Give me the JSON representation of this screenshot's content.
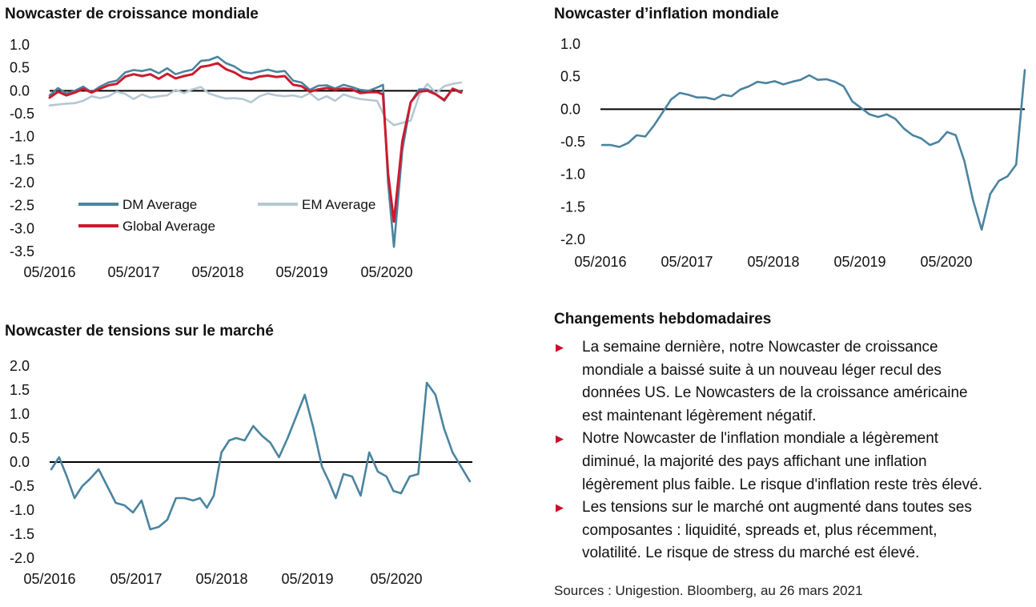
{
  "colors": {
    "dm": "#4a84a0",
    "em": "#b5c8d3",
    "global": "#cc1a2e",
    "axis": "#000000",
    "bullet": "#c8102e"
  },
  "changes": {
    "title": "Changements hebdomadaires",
    "bullet_icon": "triangle-right-icon",
    "bullets": [
      [
        "La semaine dernière, notre Nowcaster de croissance",
        "mondiale a baissé suite à un nouveau léger recul des",
        "données US. Le Nowcasters de la croissance américaine",
        "est maintenant légèrement négatif."
      ],
      [
        "Notre Nowcaster de l'inflation mondiale a légèrement",
        "diminué, la majorité des pays affichant une inflation",
        "légèrement plus faible. Le risque d'inflation reste très élevé."
      ],
      [
        "Les tensions sur le marché ont augmenté dans toutes ses",
        "composantes : liquidité, spreads et, plus récemment,",
        "volatilité. Le risque de stress du marché est élevé."
      ]
    ]
  },
  "sources": "Sources : Unigestion. Bloomberg, au 26 mars 2021",
  "chart_data": [
    {
      "type": "line",
      "title": "Nowcaster de croissance mondiale",
      "x_ticks": [
        "05/2016",
        "05/2017",
        "05/2018",
        "05/2019",
        "05/2020"
      ],
      "x_range": [
        2016.33,
        2021.25
      ],
      "y_ticks": [
        "1.0",
        "0.5",
        "0.0",
        "-0.5",
        "-1.0",
        "-1.5",
        "-2.0",
        "-2.5",
        "-3.0",
        "-3.5"
      ],
      "ylim": [
        -3.5,
        1.0
      ],
      "zero_line": true,
      "legend": [
        {
          "key": "dm",
          "label": "DM Average"
        },
        {
          "key": "em",
          "label": "EM Average"
        },
        {
          "key": "global",
          "label": "Global Average"
        }
      ],
      "series": [
        {
          "key": "dm",
          "name": "DM Average",
          "x": [
            2016.33,
            2016.43,
            2016.53,
            2016.63,
            2016.73,
            2016.83,
            2016.93,
            2017.03,
            2017.13,
            2017.23,
            2017.33,
            2017.43,
            2017.53,
            2017.63,
            2017.73,
            2017.83,
            2017.93,
            2018.03,
            2018.13,
            2018.23,
            2018.33,
            2018.43,
            2018.53,
            2018.63,
            2018.73,
            2018.83,
            2018.93,
            2019.03,
            2019.13,
            2019.23,
            2019.33,
            2019.43,
            2019.53,
            2019.63,
            2019.73,
            2019.83,
            2019.93,
            2020.03,
            2020.13,
            2020.23,
            2020.3,
            2020.36,
            2020.43,
            2020.53,
            2020.63,
            2020.73,
            2020.83,
            2020.93,
            2021.03,
            2021.13,
            2021.23
          ],
          "y": [
            -0.1,
            0.06,
            -0.06,
            0.0,
            0.09,
            -0.03,
            0.09,
            0.18,
            0.22,
            0.4,
            0.45,
            0.43,
            0.47,
            0.38,
            0.49,
            0.36,
            0.42,
            0.46,
            0.65,
            0.67,
            0.74,
            0.6,
            0.53,
            0.41,
            0.38,
            0.42,
            0.46,
            0.41,
            0.43,
            0.22,
            0.18,
            0.02,
            0.11,
            0.12,
            0.05,
            0.13,
            0.08,
            0.02,
            0.0,
            0.07,
            0.13,
            -2.0,
            -3.4,
            -1.3,
            -0.25,
            0.03,
            0.03,
            -0.08,
            -0.22,
            0.05,
            -0.02
          ]
        },
        {
          "key": "em",
          "name": "EM Average",
          "x": [
            2016.33,
            2016.43,
            2016.53,
            2016.63,
            2016.73,
            2016.83,
            2016.93,
            2017.03,
            2017.13,
            2017.23,
            2017.33,
            2017.43,
            2017.53,
            2017.63,
            2017.73,
            2017.83,
            2017.93,
            2018.03,
            2018.13,
            2018.23,
            2018.33,
            2018.43,
            2018.53,
            2018.63,
            2018.73,
            2018.83,
            2018.93,
            2019.03,
            2019.13,
            2019.23,
            2019.33,
            2019.43,
            2019.53,
            2019.63,
            2019.73,
            2019.83,
            2019.93,
            2020.03,
            2020.13,
            2020.23,
            2020.33,
            2020.43,
            2020.53,
            2020.63,
            2020.73,
            2020.83,
            2020.93,
            2021.03,
            2021.13,
            2021.23
          ],
          "y": [
            -0.32,
            -0.3,
            -0.28,
            -0.27,
            -0.22,
            -0.12,
            -0.16,
            -0.12,
            -0.02,
            -0.07,
            -0.18,
            -0.08,
            -0.15,
            -0.12,
            -0.1,
            0.02,
            -0.05,
            0.03,
            0.08,
            -0.06,
            -0.12,
            -0.17,
            -0.16,
            -0.18,
            -0.25,
            -0.12,
            -0.06,
            -0.1,
            -0.12,
            -0.1,
            -0.14,
            -0.05,
            -0.2,
            -0.12,
            -0.22,
            -0.08,
            -0.14,
            -0.18,
            -0.2,
            -0.22,
            -0.6,
            -0.75,
            -0.7,
            -0.65,
            -0.1,
            0.15,
            -0.05,
            0.1,
            0.15,
            0.18
          ]
        },
        {
          "key": "global",
          "name": "Global Average",
          "x": [
            2016.33,
            2016.43,
            2016.53,
            2016.63,
            2016.73,
            2016.83,
            2016.93,
            2017.03,
            2017.13,
            2017.23,
            2017.33,
            2017.43,
            2017.53,
            2017.63,
            2017.73,
            2017.83,
            2017.93,
            2018.03,
            2018.13,
            2018.23,
            2018.33,
            2018.43,
            2018.53,
            2018.63,
            2018.73,
            2018.83,
            2018.93,
            2019.03,
            2019.13,
            2019.23,
            2019.33,
            2019.43,
            2019.53,
            2019.63,
            2019.73,
            2019.83,
            2019.93,
            2020.03,
            2020.13,
            2020.23,
            2020.3,
            2020.36,
            2020.43,
            2020.53,
            2020.63,
            2020.73,
            2020.83,
            2020.93,
            2021.03,
            2021.13,
            2021.23
          ],
          "y": [
            -0.15,
            -0.02,
            -0.1,
            -0.04,
            0.04,
            -0.04,
            0.04,
            0.12,
            0.15,
            0.31,
            0.36,
            0.32,
            0.36,
            0.26,
            0.37,
            0.27,
            0.32,
            0.36,
            0.52,
            0.55,
            0.6,
            0.47,
            0.4,
            0.29,
            0.25,
            0.31,
            0.33,
            0.3,
            0.32,
            0.13,
            0.1,
            -0.02,
            0.03,
            0.06,
            0.02,
            0.05,
            0.03,
            -0.05,
            -0.03,
            -0.03,
            -0.08,
            -1.8,
            -2.85,
            -1.1,
            -0.25,
            -0.02,
            0.0,
            -0.08,
            -0.2,
            0.04,
            -0.04
          ]
        }
      ]
    },
    {
      "type": "line",
      "title": "Nowcaster d’inflation mondiale",
      "x_ticks": [
        "05/2016",
        "05/2017",
        "05/2018",
        "05/2019",
        "05/2020"
      ],
      "x_range": [
        2016.33,
        2021.25
      ],
      "y_ticks": [
        "1.0",
        "0.5",
        "0.0",
        "-0.5",
        "-1.0",
        "-1.5",
        "-2.0"
      ],
      "ylim": [
        -2.0,
        1.0
      ],
      "zero_line": true,
      "series": [
        {
          "key": "dm",
          "x": [
            2016.35,
            2016.45,
            2016.55,
            2016.65,
            2016.75,
            2016.85,
            2016.95,
            2017.05,
            2017.15,
            2017.25,
            2017.35,
            2017.45,
            2017.55,
            2017.65,
            2017.75,
            2017.85,
            2017.95,
            2018.05,
            2018.15,
            2018.25,
            2018.35,
            2018.45,
            2018.55,
            2018.65,
            2018.75,
            2018.85,
            2018.95,
            2019.05,
            2019.15,
            2019.25,
            2019.35,
            2019.45,
            2019.55,
            2019.65,
            2019.75,
            2019.85,
            2019.95,
            2020.05,
            2020.15,
            2020.25,
            2020.35,
            2020.45,
            2020.55,
            2020.65,
            2020.75,
            2020.85,
            2020.95,
            2021.05,
            2021.15,
            2021.25
          ],
          "y": [
            -0.55,
            -0.55,
            -0.58,
            -0.52,
            -0.4,
            -0.42,
            -0.25,
            -0.05,
            0.15,
            0.25,
            0.22,
            0.18,
            0.18,
            0.15,
            0.22,
            0.2,
            0.3,
            0.35,
            0.42,
            0.4,
            0.43,
            0.38,
            0.42,
            0.45,
            0.52,
            0.45,
            0.46,
            0.42,
            0.35,
            0.12,
            0.02,
            -0.08,
            -0.12,
            -0.08,
            -0.15,
            -0.3,
            -0.4,
            -0.45,
            -0.55,
            -0.5,
            -0.35,
            -0.4,
            -0.8,
            -1.4,
            -1.85,
            -1.3,
            -1.1,
            -1.03,
            -0.85,
            0.6
          ]
        }
      ]
    },
    {
      "type": "line",
      "title": "Nowcaster de tensions sur le marché",
      "x_ticks": [
        "05/2016",
        "05/2017",
        "05/2018",
        "05/2019",
        "05/2020"
      ],
      "x_range": [
        2016.33,
        2021.25
      ],
      "y_ticks": [
        "2.0",
        "1.5",
        "1.0",
        "0.5",
        "0.0",
        "-0.5",
        "-1.0",
        "-1.5",
        "-2.0"
      ],
      "ylim": [
        -2.0,
        2.0
      ],
      "zero_line": true,
      "series": [
        {
          "key": "dm",
          "x": [
            2016.35,
            2016.44,
            2016.53,
            2016.62,
            2016.71,
            2016.8,
            2016.9,
            2017.0,
            2017.1,
            2017.2,
            2017.3,
            2017.4,
            2017.5,
            2017.6,
            2017.7,
            2017.8,
            2017.9,
            2018.0,
            2018.08,
            2018.16,
            2018.24,
            2018.33,
            2018.42,
            2018.5,
            2018.6,
            2018.7,
            2018.8,
            2018.9,
            2019.0,
            2019.1,
            2019.2,
            2019.3,
            2019.4,
            2019.5,
            2019.58,
            2019.66,
            2019.75,
            2019.85,
            2019.95,
            2020.05,
            2020.15,
            2020.25,
            2020.33,
            2020.42,
            2020.52,
            2020.62,
            2020.72,
            2020.82,
            2020.92,
            2021.02,
            2021.12,
            2021.22
          ],
          "y": [
            -0.15,
            0.1,
            -0.3,
            -0.75,
            -0.5,
            -0.35,
            -0.15,
            -0.5,
            -0.85,
            -0.9,
            -1.05,
            -0.8,
            -1.4,
            -1.35,
            -1.2,
            -0.75,
            -0.75,
            -0.8,
            -0.75,
            -0.95,
            -0.7,
            0.2,
            0.45,
            0.5,
            0.45,
            0.75,
            0.55,
            0.4,
            0.1,
            0.5,
            0.95,
            1.4,
            0.7,
            -0.1,
            -0.4,
            -0.75,
            -0.25,
            -0.3,
            -0.7,
            0.2,
            -0.2,
            -0.3,
            -0.6,
            -0.65,
            -0.3,
            -0.25,
            1.65,
            1.4,
            0.7,
            0.2,
            -0.1,
            -0.4
          ]
        }
      ]
    }
  ]
}
